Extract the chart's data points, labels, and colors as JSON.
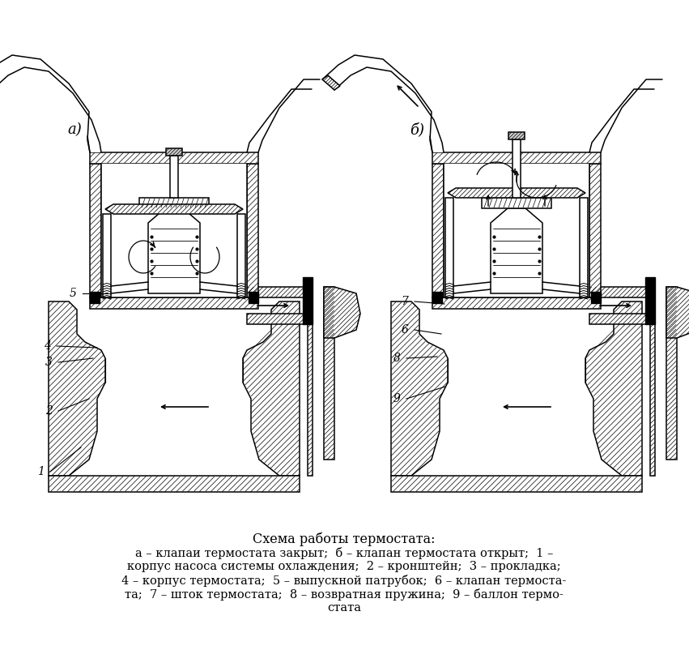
{
  "title": "Схема работы термостата:",
  "caption_line1": "а – клапаи термостата закрыт;  б – клапан термостата открыт;  1 –",
  "caption_line2": "корпус насоса системы охлаждения;  2 – кронштейн;  3 – прокладка;",
  "caption_line3": "4 – корпус термостата;  5 – выпускной патрубок;  6 – клапан термоста-",
  "caption_line4": "та;  7 – шток термостата;  8 – возвратная пружина;  9 – баллон термо-",
  "caption_line5": "стата",
  "label_a": "а)",
  "label_b": "б)",
  "bg_color": "#ffffff",
  "lc": "#000000",
  "font_size_title": 11.5,
  "font_size_caption": 10.5,
  "font_size_label": 13
}
